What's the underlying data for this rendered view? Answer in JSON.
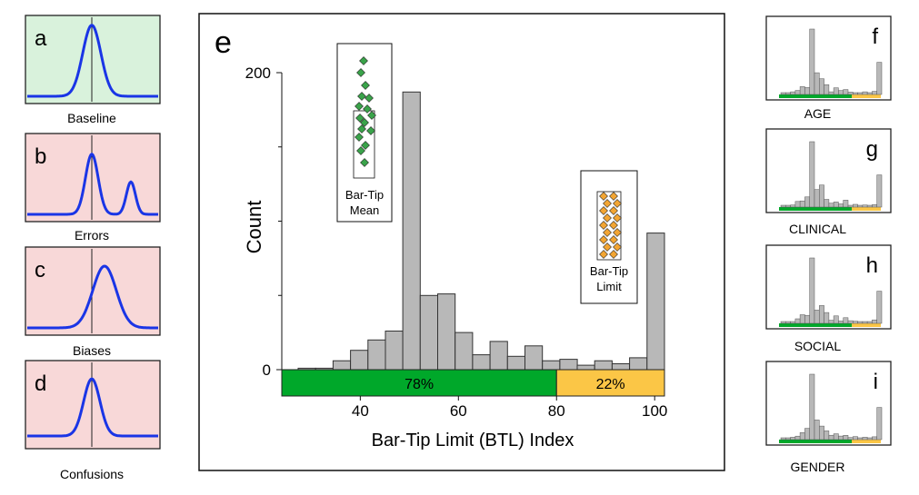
{
  "colors": {
    "baseline_bg": "#d9f2dc",
    "error_bg": "#f8d8d8",
    "curve": "#1a35e6",
    "bar": "#b8b8b8",
    "bar_stroke": "#333333",
    "green": "#00a82a",
    "gold": "#fbc646",
    "green_diamond": "#3aa34a",
    "orange_diamond": "#f2a533"
  },
  "left_panels": [
    {
      "letter": "a",
      "caption": "Baseline",
      "shape": "single-peak"
    },
    {
      "letter": "b",
      "caption": "Errors",
      "shape": "bimodal"
    },
    {
      "letter": "c",
      "caption": "Biases",
      "shape": "shifted-peak"
    },
    {
      "letter": "d",
      "caption": "Confusions",
      "shape": "peak-with-floor"
    }
  ],
  "right_panels": [
    {
      "letter": "f",
      "caption": "AGE"
    },
    {
      "letter": "g",
      "caption": "CLINICAL"
    },
    {
      "letter": "h",
      "caption": "SOCIAL"
    },
    {
      "letter": "i",
      "caption": "GENDER"
    }
  ],
  "chart_data": {
    "type": "bar",
    "panel_letter": "e",
    "xlabel": "Bar-Tip Limit (BTL) Index",
    "ylabel": "Count",
    "xlim": [
      24,
      102
    ],
    "ylim": [
      0,
      200
    ],
    "x_ticks": [
      "40",
      "60",
      "80",
      "100"
    ],
    "y_ticks": [
      "0",
      "200"
    ],
    "bin_width": 4,
    "bins": [
      {
        "start": 28,
        "count": 1
      },
      {
        "start": 32,
        "count": 1
      },
      {
        "start": 36,
        "count": 6
      },
      {
        "start": 40,
        "count": 13
      },
      {
        "start": 44,
        "count": 20
      },
      {
        "start": 48,
        "count": 26
      },
      {
        "start": 52,
        "count": 187
      },
      {
        "start": 56,
        "count": 50
      },
      {
        "start": 60,
        "count": 51
      },
      {
        "start": 64,
        "count": 25
      },
      {
        "start": 68,
        "count": 10
      },
      {
        "start": 72,
        "count": 19
      },
      {
        "start": 76,
        "count": 9
      },
      {
        "start": 80,
        "count": 16
      },
      {
        "start": 84,
        "count": 6
      },
      {
        "start": 88,
        "count": 7
      },
      {
        "start": 92,
        "count": 3
      },
      {
        "start": 96,
        "count": 6
      },
      {
        "start": 100,
        "count": 4
      },
      {
        "start": 104,
        "count": 8
      },
      {
        "start": 108,
        "count": 92
      }
    ],
    "split_bar": [
      {
        "label": "78%",
        "from": 24,
        "to": 80
      },
      {
        "label": "22%",
        "from": 80,
        "to": 102
      }
    ],
    "insets": [
      {
        "label_lines": [
          "Bar-Tip",
          "Mean"
        ],
        "marker": "green-diamond",
        "count": 16
      },
      {
        "label_lines": [
          "Bar-Tip",
          "Limit"
        ],
        "marker": "orange-diamond",
        "count": 18
      }
    ]
  }
}
